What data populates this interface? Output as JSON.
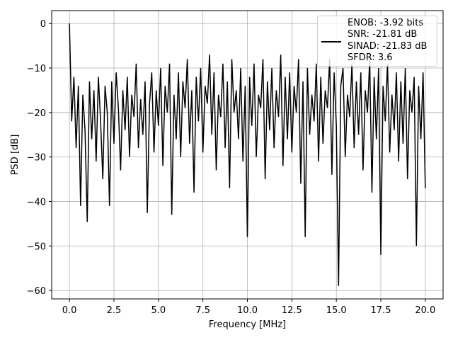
{
  "chart_data": {
    "type": "line",
    "xlabel": "Frequency [MHz]",
    "ylabel": "PSD [dB]",
    "xlim": [
      -1,
      21
    ],
    "ylim": [
      -61.9,
      2.9
    ],
    "xticks": [
      {
        "value": 0,
        "label": "0.0"
      },
      2.5,
      {
        "value": 5,
        "label": "5.0"
      },
      7.5,
      {
        "value": 10,
        "label": "10.0"
      },
      12.5,
      {
        "value": 15,
        "label": "15.0"
      },
      17.5,
      {
        "value": 20,
        "label": "20.0"
      }
    ],
    "yticks": [
      0,
      {
        "value": -10,
        "label": "−10"
      },
      {
        "value": -20,
        "label": "−20"
      },
      {
        "value": -30,
        "label": "−30"
      },
      {
        "value": -40,
        "label": "−40"
      },
      {
        "value": -50,
        "label": "−50"
      },
      {
        "value": -60,
        "label": "−60"
      }
    ],
    "grid": true,
    "legend": "upper right",
    "x": [
      0,
      0.125,
      0.25,
      0.375,
      0.5,
      0.625,
      0.75,
      0.875,
      1,
      1.125,
      1.25,
      1.375,
      1.5,
      1.625,
      1.75,
      1.875,
      2,
      2.125,
      2.25,
      2.375,
      2.5,
      2.625,
      2.75,
      2.875,
      3,
      3.125,
      3.25,
      3.375,
      3.5,
      3.625,
      3.75,
      3.875,
      4,
      4.125,
      4.25,
      4.375,
      4.5,
      4.625,
      4.75,
      4.875,
      5,
      5.125,
      5.25,
      5.375,
      5.5,
      5.625,
      5.75,
      5.875,
      6,
      6.125,
      6.25,
      6.375,
      6.5,
      6.625,
      6.75,
      6.875,
      7,
      7.125,
      7.25,
      7.375,
      7.5,
      7.625,
      7.75,
      7.875,
      8,
      8.125,
      8.25,
      8.375,
      8.5,
      8.625,
      8.75,
      8.875,
      9,
      9.125,
      9.25,
      9.375,
      9.5,
      9.625,
      9.75,
      9.875,
      10,
      10.125,
      10.25,
      10.375,
      10.5,
      10.625,
      10.75,
      10.875,
      11,
      11.125,
      11.25,
      11.375,
      11.5,
      11.625,
      11.75,
      11.875,
      12,
      12.125,
      12.25,
      12.375,
      12.5,
      12.625,
      12.75,
      12.875,
      13,
      13.125,
      13.25,
      13.375,
      13.5,
      13.625,
      13.75,
      13.875,
      14,
      14.125,
      14.25,
      14.375,
      14.5,
      14.625,
      14.75,
      14.875,
      15,
      15.125,
      15.25,
      15.375,
      15.5,
      15.625,
      15.75,
      15.875,
      16,
      16.125,
      16.25,
      16.375,
      16.5,
      16.625,
      16.75,
      16.875,
      17,
      17.125,
      17.25,
      17.375,
      17.5,
      17.625,
      17.75,
      17.875,
      18,
      18.125,
      18.25,
      18.375,
      18.5,
      18.625,
      18.75,
      18.875,
      19,
      19.125,
      19.25,
      19.375,
      19.5,
      19.625,
      19.75,
      19.875,
      20
    ],
    "series": [
      {
        "name": "ENOB: -3.92 bits\nSNR: -21.81 dB\nSINAD: -21.83 dB\nSFDR: 3.6",
        "color": "#000000",
        "values": [
          0,
          -22,
          -12,
          -28,
          -14,
          -41,
          -16,
          -24,
          -44.6,
          -13,
          -26,
          -15,
          -31,
          -12,
          -22,
          -35,
          -14,
          -20,
          -41,
          -13,
          -27,
          -11,
          -19,
          -33,
          -15,
          -24,
          -12,
          -30,
          -16,
          -21,
          -9,
          -28,
          -17,
          -25,
          -13,
          -42.6,
          -18,
          -11,
          -29,
          -15,
          -23,
          -10,
          -32,
          -14,
          -20,
          -9,
          -43,
          -16,
          -26,
          -11,
          -30,
          -13,
          -19,
          -8,
          -27,
          -15,
          -38,
          -12,
          -22,
          -10,
          -29,
          -14,
          -18,
          -7,
          -25,
          -11,
          -33,
          -16,
          -21,
          -9,
          -28,
          -13,
          -37,
          -8,
          -20,
          -15,
          -26,
          -10,
          -31,
          -14,
          -48,
          -12,
          -23,
          -9,
          -30,
          -16,
          -19,
          -8,
          -35,
          -13,
          -24,
          -10,
          -28,
          -15,
          -21,
          -7,
          -32,
          -12,
          -26,
          -11,
          -29,
          -14,
          -20,
          -8,
          -36,
          -13,
          -48,
          -10,
          -25,
          -16,
          -22,
          -9,
          -31,
          -12,
          -27,
          -15,
          -19,
          -8,
          -34,
          -11,
          -23,
          -59,
          -14,
          -10,
          -30,
          -16,
          -21,
          -9,
          -28,
          -13,
          -25,
          -11,
          -33,
          -15,
          -20,
          -8,
          -38,
          -12,
          -26,
          -10,
          -52,
          -14,
          -22,
          -9,
          -29,
          -16,
          -24,
          -11,
          -31,
          -13,
          -27,
          -10,
          -35,
          -15,
          -20,
          -12,
          -50,
          -14,
          -26,
          -11,
          -37
        ]
      }
    ]
  }
}
